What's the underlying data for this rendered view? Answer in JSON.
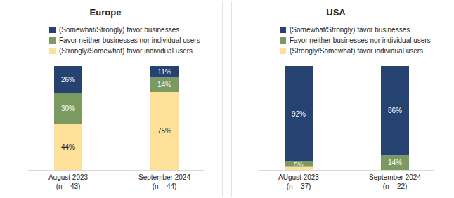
{
  "chart_data": [
    {
      "type": "bar",
      "title": "Europe",
      "stacked": true,
      "data_labels": true,
      "tick_labels": false,
      "legend": "top-left",
      "ylim": [
        0,
        100
      ],
      "categories": [
        "August 2023",
        "September 2024"
      ],
      "category_notes": [
        "(n = 43)",
        "(n = 44)"
      ],
      "series": [
        {
          "name": "(Somewhat/Strongly) favor businesses",
          "color": "#254271",
          "values": [
            26,
            11
          ],
          "value_labels": [
            "26%",
            "11%"
          ]
        },
        {
          "name": "Favor neither businesses nor individual users",
          "color": "#7a9a5f",
          "values": [
            30,
            14
          ],
          "value_labels": [
            "30%",
            "14%"
          ]
        },
        {
          "name": "(Strongly/Somewhat) favor individual users",
          "color": "#fde09a",
          "values": [
            44,
            75
          ],
          "value_labels": [
            "44%",
            "75%"
          ]
        }
      ]
    },
    {
      "type": "bar",
      "title": "USA",
      "stacked": true,
      "data_labels": true,
      "tick_labels": false,
      "legend": "top-left",
      "ylim": [
        0,
        100
      ],
      "categories": [
        "AUgust 2023",
        "September 2024"
      ],
      "category_notes": [
        "(n = 37)",
        "(n = 22)"
      ],
      "series": [
        {
          "name": "(Somewhat/Strongly) favor businesses",
          "color": "#254271",
          "values": [
            92,
            86
          ],
          "value_labels": [
            "92%",
            "86%"
          ]
        },
        {
          "name": "Favor neither businesses nor individual users",
          "color": "#7a9a5f",
          "values": [
            5,
            14
          ],
          "value_labels": [
            "5%",
            "14%"
          ]
        },
        {
          "name": "(Strongly/Somewhat) favor individual users",
          "color": "#fde09a",
          "values": [
            3,
            0
          ],
          "value_labels": [
            null,
            null
          ]
        }
      ]
    }
  ]
}
